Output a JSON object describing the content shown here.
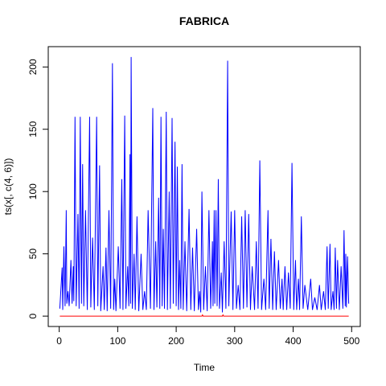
{
  "chart_data": {
    "type": "line",
    "title": "FABRICA",
    "xlabel": "Time",
    "ylabel": "ts(x[, c(4, 6)])",
    "xlim": [
      -18.76,
      514.76
    ],
    "ylim": [
      -8.32,
      216.32
    ],
    "xticks": [
      0,
      100,
      200,
      300,
      400,
      500
    ],
    "yticks": [
      0,
      50,
      100,
      150,
      200
    ],
    "series": [
      {
        "color": "#0000ff",
        "x": [
          1,
          5,
          6,
          8,
          10,
          12,
          13,
          15,
          17,
          20,
          22,
          24,
          25,
          27,
          29,
          32,
          34,
          36,
          38,
          40,
          42,
          45,
          48,
          52,
          54,
          57,
          60,
          64,
          66,
          69,
          71,
          75,
          77,
          80,
          82,
          85,
          88,
          91,
          93,
          95,
          97,
          101,
          104,
          107,
          109,
          112,
          114,
          117,
          119,
          121,
          122,
          123,
          125,
          128,
          130,
          133,
          136,
          140,
          143,
          146,
          149,
          152,
          156,
          160,
          162,
          165,
          167,
          170,
          172,
          174,
          176,
          178,
          180,
          183,
          185,
          188,
          190,
          193,
          195,
          198,
          200,
          202,
          204,
          206,
          208,
          210,
          212,
          215,
          218,
          222,
          225,
          228,
          231,
          235,
          238,
          240,
          242,
          244,
          247,
          250,
          253,
          256,
          259,
          262,
          263,
          265,
          266,
          268,
          270,
          272,
          274,
          277,
          279,
          282,
          285,
          288,
          290,
          294,
          297,
          300,
          303,
          306,
          309,
          312,
          315,
          318,
          321,
          324,
          327,
          330,
          334,
          337,
          340,
          343,
          346,
          350,
          353,
          357,
          359,
          362,
          365,
          368,
          371,
          375,
          378,
          381,
          383,
          386,
          389,
          392,
          395,
          398,
          401,
          404,
          406,
          409,
          411,
          414,
          417,
          420,
          425,
          430,
          433,
          437,
          441,
          445,
          448,
          452,
          455,
          458,
          460,
          463,
          465,
          468,
          470,
          472,
          474,
          476,
          479,
          482,
          485,
          487,
          489,
          490,
          491,
          493,
          495
        ],
        "values": [
          6,
          39,
          5,
          56,
          8,
          85,
          10,
          20,
          8,
          45,
          10,
          40,
          12,
          160,
          8,
          82,
          6,
          160,
          10,
          122,
          8,
          85,
          5,
          160,
          7,
          63,
          5,
          160,
          8,
          121,
          4,
          40,
          5,
          55,
          4,
          85,
          6,
          203,
          5,
          30,
          4,
          56,
          6,
          110,
          5,
          161,
          6,
          40,
          8,
          130,
          10,
          208,
          6,
          50,
          5,
          80,
          4,
          50,
          5,
          20,
          5,
          85,
          6,
          167,
          5,
          60,
          7,
          95,
          6,
          160,
          8,
          70,
          6,
          164,
          5,
          100,
          6,
          159,
          10,
          140,
          8,
          120,
          5,
          45,
          6,
          122,
          5,
          60,
          4,
          86,
          5,
          55,
          4,
          70,
          5,
          20,
          3,
          100,
          5,
          40,
          4,
          85,
          6,
          60,
          8,
          85,
          10,
          85,
          8,
          110,
          6,
          35,
          3,
          60,
          6,
          205,
          8,
          84,
          5,
          85,
          6,
          25,
          5,
          80,
          6,
          85,
          7,
          82,
          5,
          40,
          5,
          60,
          6,
          125,
          5,
          30,
          5,
          85,
          6,
          62,
          5,
          52,
          5,
          45,
          6,
          30,
          5,
          40,
          5,
          35,
          6,
          123,
          5,
          45,
          5,
          30,
          5,
          80,
          6,
          25,
          5,
          30,
          5,
          15,
          5,
          25,
          5,
          20,
          5,
          56,
          6,
          58,
          5,
          20,
          5,
          55,
          6,
          45,
          5,
          40,
          6,
          69,
          8,
          50,
          7,
          48,
          10
        ]
      },
      {
        "color": "#ff0000",
        "x": [
          1,
          244,
          245,
          246,
          279,
          280,
          281,
          495
        ],
        "values": [
          0,
          0,
          1,
          0,
          0,
          1,
          0,
          0
        ]
      }
    ]
  }
}
